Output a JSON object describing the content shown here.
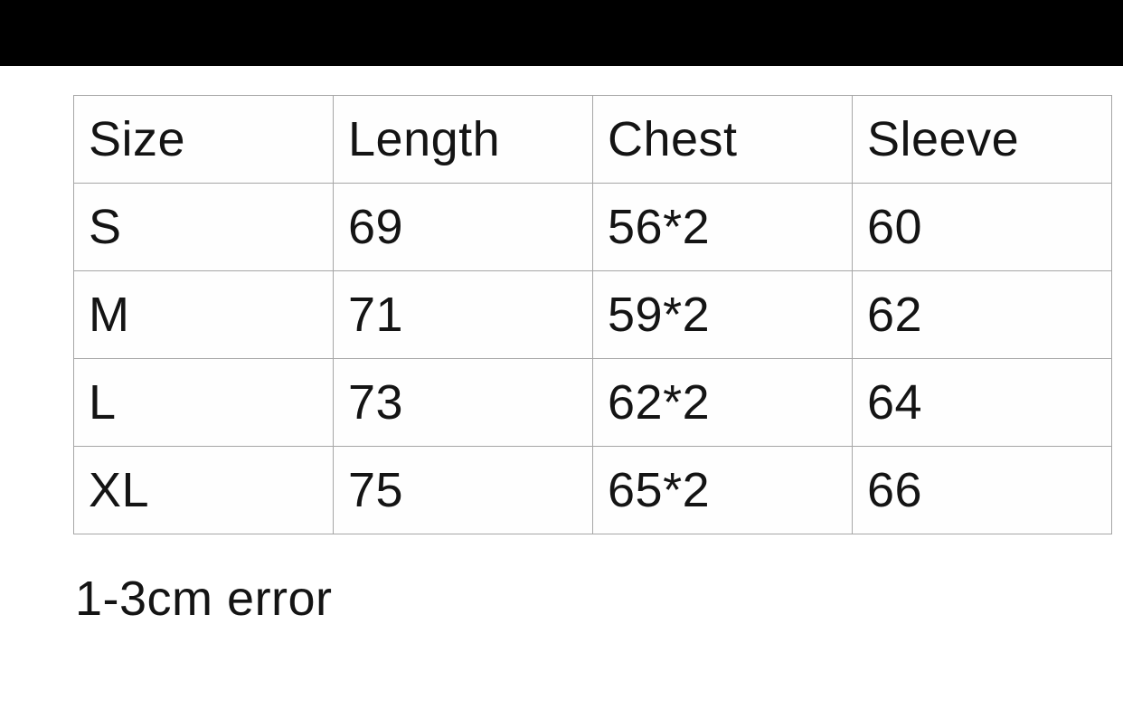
{
  "colors": {
    "top_bar": "#000000",
    "table_border": "#a6a6a6",
    "text": "#141414",
    "background": "#ffffff"
  },
  "table": {
    "columns": [
      "Size",
      "Length",
      "Chest",
      "Sleeve"
    ],
    "rows": [
      [
        "S",
        "69",
        "56*2",
        "60"
      ],
      [
        "M",
        "71",
        "59*2",
        "62"
      ],
      [
        "L",
        "73",
        "62*2",
        "64"
      ],
      [
        "XL",
        "75",
        "65*2",
        "66"
      ]
    ]
  },
  "note": "1-3cm error"
}
